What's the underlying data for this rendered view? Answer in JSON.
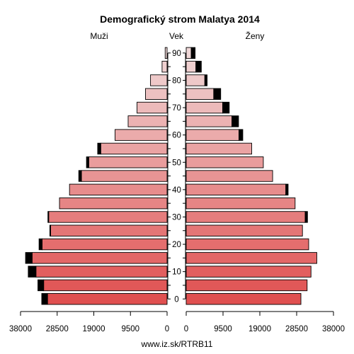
{
  "chart_data": {
    "type": "bar",
    "orientation": "horizontal",
    "title": "Demografický strom Malatya 2014",
    "left_label": "Muži",
    "center_label": "Vek",
    "right_label": "Ženy",
    "source": "www.iz.sk/RTRB11",
    "age_ticks": [
      "0",
      "10",
      "20",
      "30",
      "40",
      "50",
      "60",
      "70",
      "80",
      "90"
    ],
    "x_ticks": [
      "38000",
      "28500",
      "19000",
      "9500",
      "0"
    ],
    "x_ticks_right": [
      "0",
      "9500",
      "19000",
      "28500",
      "38000"
    ],
    "xlim": [
      0,
      38000
    ],
    "age_groups": [
      "0-4",
      "5-9",
      "10-14",
      "15-19",
      "20-24",
      "25-29",
      "30-34",
      "35-39",
      "40-44",
      "45-49",
      "50-54",
      "55-59",
      "60-64",
      "65-69",
      "70-74",
      "75-79",
      "80-84",
      "85-89",
      "90-94"
    ],
    "series": [
      {
        "name": "Muži",
        "values": [
          31000,
          32000,
          34000,
          35000,
          32400,
          30200,
          30700,
          27900,
          25300,
          22200,
          20300,
          17200,
          13500,
          10100,
          7800,
          5600,
          4300,
          1300,
          500
        ],
        "excess": [
          1500,
          1500,
          2000,
          1700,
          800,
          200,
          200,
          0,
          0,
          700,
          600,
          800,
          0,
          0,
          0,
          0,
          0,
          0,
          0
        ]
      },
      {
        "name": "Ženy",
        "values": [
          29600,
          31200,
          32200,
          33700,
          31600,
          30000,
          30700,
          28100,
          25700,
          22300,
          19900,
          16900,
          13600,
          11800,
          9400,
          7100,
          4800,
          2500,
          1300
        ],
        "excess": [
          0,
          0,
          0,
          0,
          0,
          0,
          600,
          0,
          600,
          0,
          0,
          0,
          1000,
          1700,
          1700,
          1800,
          600,
          1400,
          1000
        ]
      }
    ],
    "colors": {
      "young": "#e05050",
      "old": "#f0d8d8",
      "excess": "#000000"
    }
  }
}
